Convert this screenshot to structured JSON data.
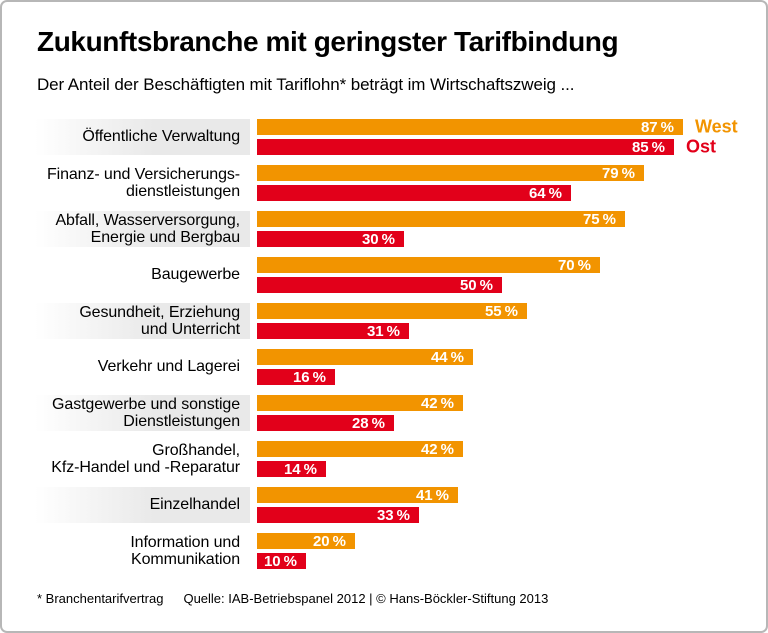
{
  "header": {
    "title": "Zukunftsbranche mit geringster Tarifbindung",
    "subtitle": "Der Anteil der Beschäftigten mit Tariflohn* beträgt im Wirtschaftszweig ..."
  },
  "footer": {
    "footnote": "* Branchentarifvertrag",
    "source": "Quelle: IAB-Betriebspanel 2012 | © Hans-Böckler-Stiftung 2013"
  },
  "colors": {
    "west_orange": "#F29400",
    "ost_red": "#E2001A",
    "row_band_gray": "#E9E9E9",
    "frame_border": "#B7B7B7"
  },
  "chart_data": {
    "type": "bar",
    "orientation": "horizontal",
    "unit": "%",
    "xlim": [
      0,
      100
    ],
    "legend_position": "right-of-first-bars",
    "grid": false,
    "categories": [
      "Öffentliche Verwaltung",
      "Finanz- und Versicherungsdienstleistungen",
      "Abfall, Wasserversorgung, Energie und Bergbau",
      "Baugewerbe",
      "Gesundheit, Erziehung und Unterricht",
      "Verkehr und Lagerei",
      "Gastgewerbe und sonstige Dienstleistungen",
      "Großhandel, Kfz-Handel und -Reparatur",
      "Einzelhandel",
      "Information und Kommunikation"
    ],
    "categories_lines": [
      [
        "Öffentliche Verwaltung"
      ],
      [
        "Finanz- und Versicherungs-",
        "dienstleistungen"
      ],
      [
        "Abfall, Wasserversorgung,",
        "Energie und Bergbau"
      ],
      [
        "Baugewerbe"
      ],
      [
        "Gesundheit, Erziehung",
        "und Unterricht"
      ],
      [
        "Verkehr und Lagerei"
      ],
      [
        "Gastgewerbe und sonstige",
        "Dienstleistungen"
      ],
      [
        "Großhandel,",
        "Kfz-Handel und -Reparatur"
      ],
      [
        "Einzelhandel"
      ],
      [
        "Information und",
        "Kommunikation"
      ]
    ],
    "series": [
      {
        "name": "West",
        "color": "#F29400",
        "values": [
          87,
          79,
          75,
          70,
          55,
          44,
          42,
          42,
          41,
          20
        ]
      },
      {
        "name": "Ost",
        "color": "#E2001A",
        "values": [
          85,
          64,
          30,
          50,
          31,
          16,
          28,
          14,
          33,
          10
        ]
      }
    ],
    "striped_rows": [
      0,
      2,
      4,
      6,
      8
    ]
  }
}
